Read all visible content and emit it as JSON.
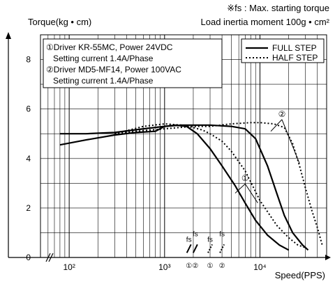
{
  "header": {
    "note": "※fs : Max. starting torque",
    "inertia": "Load inertia moment 100g • cm²"
  },
  "chart_data": {
    "type": "line",
    "ylabel": "Torque(kg • cm)",
    "xlabel": "Speed(PPS)",
    "x_scale": "log",
    "xlim": [
      50,
      50000
    ],
    "ylim": [
      0,
      9
    ],
    "x_tick_labels": [
      "10²",
      "10³",
      "10⁴"
    ],
    "y_ticks": [
      0,
      2,
      4,
      6,
      8
    ],
    "grid": true,
    "info_lines": [
      "①Driver KR-55MC, Power 24VDC",
      "   Setting current 1.4A/Phase",
      "②Driver MD5-MF14, Power 100VAC",
      "   Setting current 1.4A/Phase"
    ],
    "legend": [
      {
        "name": "FULL STEP",
        "style": "solid"
      },
      {
        "name": "HALF STEP",
        "style": "dotted"
      }
    ],
    "series": [
      {
        "name": "FULL STEP",
        "driver": "①",
        "style": "solid",
        "x": [
          80,
          150,
          300,
          500,
          800,
          1000,
          1300,
          1700,
          2200,
          3000,
          4000,
          5500,
          7000,
          9000,
          12000,
          16000,
          20000
        ],
        "y": [
          4.55,
          4.75,
          4.95,
          5.05,
          5.1,
          5.3,
          5.35,
          5.3,
          5.0,
          4.4,
          3.7,
          2.9,
          2.2,
          1.5,
          0.9,
          0.5,
          0.3
        ]
      },
      {
        "name": "HALF STEP",
        "driver": "①",
        "style": "dotted",
        "x": [
          300,
          600,
          1000,
          1500,
          2000,
          2500,
          3000,
          4000,
          5000,
          7000,
          10000,
          15000,
          20000,
          25000,
          30000
        ],
        "y": [
          5.0,
          5.3,
          5.4,
          5.35,
          5.25,
          5.15,
          5.0,
          4.7,
          4.3,
          3.5,
          2.3,
          1.3,
          0.8,
          0.5,
          0.4
        ]
      },
      {
        "name": "FULL STEP",
        "driver": "②",
        "style": "solid",
        "x": [
          80,
          150,
          300,
          600,
          1000,
          1500,
          2000,
          3000,
          5000,
          7000,
          9000,
          12000,
          15000,
          18000,
          22000,
          28000,
          32000
        ],
        "y": [
          5.0,
          5.0,
          5.05,
          5.2,
          5.3,
          5.35,
          5.35,
          5.35,
          5.3,
          5.2,
          4.8,
          3.7,
          2.6,
          1.7,
          1.0,
          0.5,
          0.3
        ]
      },
      {
        "name": "HALF STEP",
        "driver": "②",
        "style": "dotted",
        "x": [
          300,
          500,
          1000,
          2000,
          3000,
          5000,
          8000,
          10000,
          14000,
          18000,
          22000,
          26000,
          30000,
          35000,
          40000,
          45000
        ],
        "y": [
          5.0,
          5.1,
          5.2,
          5.3,
          5.3,
          5.4,
          5.45,
          5.45,
          5.4,
          5.25,
          4.6,
          3.7,
          2.8,
          1.9,
          1.2,
          0.5
        ]
      }
    ],
    "fs_points": [
      {
        "label": "fs",
        "driver": "①",
        "style": "solid",
        "x": 1800,
        "y": 0.3
      },
      {
        "label": "fs",
        "driver": "②",
        "style": "solid",
        "x": 2100,
        "y": 0.3
      },
      {
        "label": "fs",
        "driver": "①",
        "style": "dotted",
        "x": 3000,
        "y": 0.3
      },
      {
        "label": "fs",
        "driver": "②",
        "style": "dotted",
        "x": 4000,
        "y": 0.3
      }
    ],
    "annotations": [
      {
        "label": "②",
        "x": 17000,
        "y": 5.8
      },
      {
        "label": "①",
        "x": 7000,
        "y": 3.2
      }
    ]
  }
}
